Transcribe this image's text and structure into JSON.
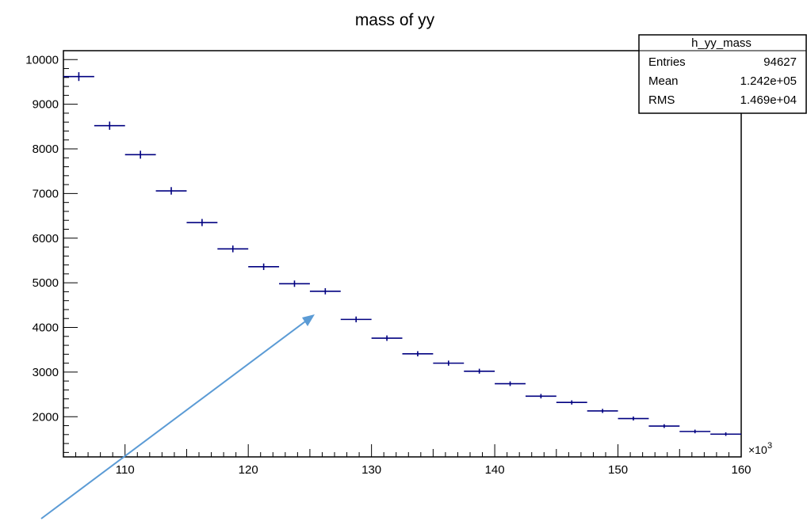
{
  "chart_data": {
    "type": "histogram",
    "title": "mass of yy",
    "xlabel": "",
    "ylabel": "",
    "x_multiplier": "×10",
    "x_multiplier_exp": "3",
    "xlim": [
      105,
      160
    ],
    "ylim": [
      1100,
      10200
    ],
    "x_ticks": [
      110,
      120,
      130,
      140,
      150,
      160
    ],
    "x_tick_labels": [
      "110",
      "120",
      "130",
      "140",
      "150",
      "160"
    ],
    "y_ticks": [
      2000,
      3000,
      4000,
      5000,
      6000,
      7000,
      8000,
      9000,
      10000
    ],
    "y_tick_labels": [
      "2000",
      "3000",
      "4000",
      "5000",
      "6000",
      "7000",
      "8000",
      "9000",
      "10000"
    ],
    "bin_width": 2.5,
    "bin_centers": [
      106.25,
      108.75,
      111.25,
      113.75,
      116.25,
      118.75,
      121.25,
      123.75,
      126.25,
      128.75,
      131.25,
      133.75,
      136.25,
      138.75,
      141.25,
      143.75,
      146.25,
      148.75,
      151.25,
      153.75,
      156.25,
      158.75
    ],
    "values": [
      9620,
      8520,
      7870,
      7060,
      6350,
      5760,
      5360,
      4980,
      4810,
      4180,
      3760,
      3410,
      3200,
      3020,
      2740,
      2460,
      2320,
      2130,
      1960,
      1790,
      1670,
      1610
    ],
    "errors": [
      98,
      92,
      89,
      84,
      80,
      76,
      73,
      71,
      69,
      65,
      61,
      58,
      57,
      55,
      52,
      50,
      48,
      46,
      44,
      42,
      41,
      40
    ],
    "marker_color": "#000080",
    "stats_box": {
      "name": "h_yy_mass",
      "rows": [
        {
          "label": "Entries",
          "value": "94627"
        },
        {
          "label": "Mean",
          "value": "1.242e+05"
        },
        {
          "label": "RMS",
          "value": "1.469e+04"
        }
      ]
    },
    "annotation_arrow_color": "#5b9bd5"
  }
}
